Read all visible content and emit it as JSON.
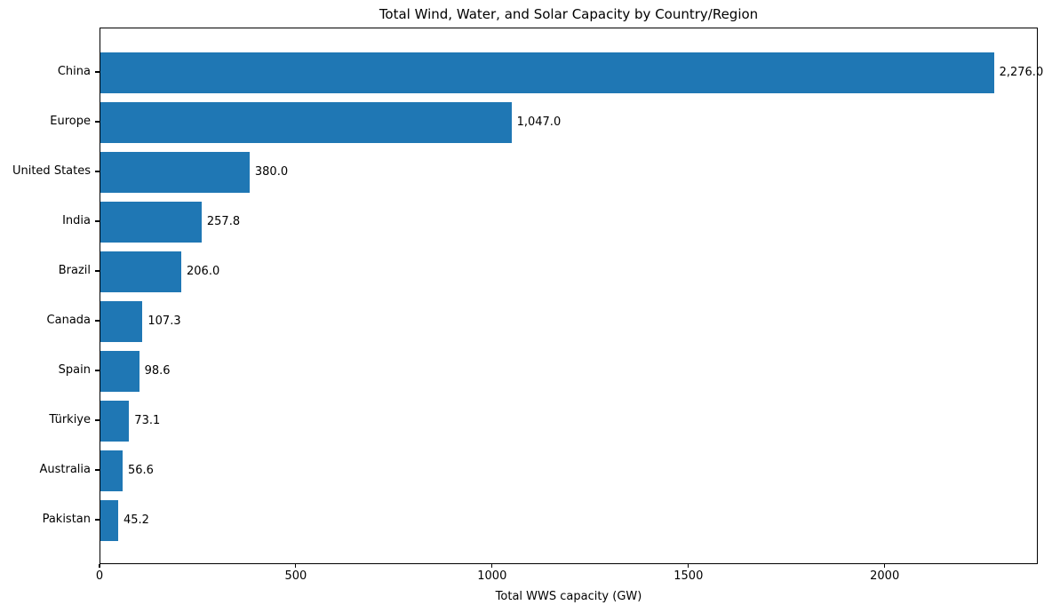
{
  "chart_data": {
    "type": "bar",
    "orientation": "horizontal",
    "title": "Total Wind, Water, and Solar Capacity by Country/Region",
    "xlabel": "Total WWS capacity (GW)",
    "ylabel": "",
    "categories": [
      "China",
      "Europe",
      "United States",
      "India",
      "Brazil",
      "Canada",
      "Spain",
      "Türkiye",
      "Australia",
      "Pakistan"
    ],
    "values": [
      2276.0,
      1047.0,
      380.0,
      257.8,
      206.0,
      107.3,
      98.6,
      73.1,
      56.6,
      45.2
    ],
    "value_labels": [
      "2,276.0",
      "1,047.0",
      "380.0",
      "257.8",
      "206.0",
      "107.3",
      "98.6",
      "73.1",
      "56.6",
      "45.2"
    ],
    "x_ticks": [
      0,
      500,
      1000,
      1500,
      2000
    ],
    "x_tick_labels": [
      "0",
      "500",
      "1000",
      "1500",
      "2000"
    ],
    "xlim": [
      0,
      2390
    ],
    "bar_color": "#1f77b4",
    "text_color": "#000000",
    "grid": false,
    "legend_position": "none"
  }
}
